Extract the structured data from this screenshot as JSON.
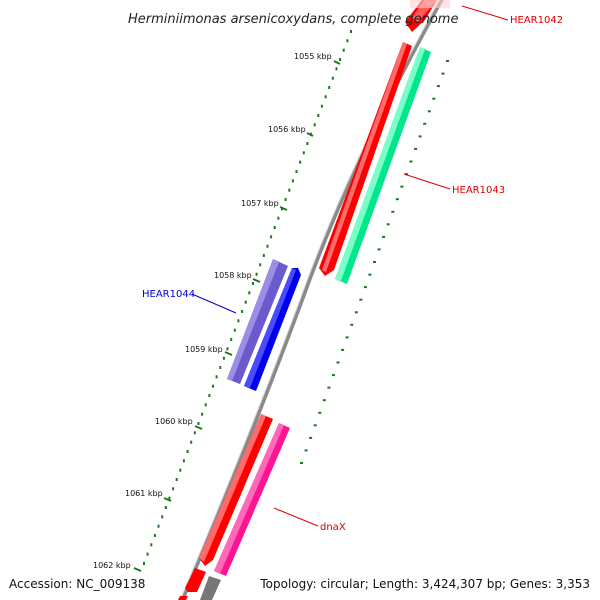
{
  "title": "Herminiimonas arsenicoxydans, complete genome",
  "footer": {
    "accession": "Accession: NC_009138",
    "summary": "Topology: circular; Length: 3,424,307 bp; Genes: 3,353"
  },
  "ticks": [
    "1055 kbp",
    "1056 kbp",
    "1057 kbp",
    "1058 kbp",
    "1059 kbp",
    "1060 kbp",
    "1061 kbp",
    "1062 kbp"
  ],
  "genes": [
    {
      "label": "HEAR1042",
      "color": "#dd0000"
    },
    {
      "label": "HEAR1043",
      "color": "#dd0000"
    },
    {
      "label": "HEAR1044",
      "color": "#0000cc"
    },
    {
      "label": "dnaX",
      "color": "#dd0000"
    }
  ],
  "colors": {
    "cds": "#ff0000",
    "cog_green": "#00e68a",
    "cog_purple": "#6a5acd",
    "cog_blue": "#0000ee",
    "cog_pink": "#ff1493",
    "backbone": "#8a8a8a",
    "tick": "#1a7a1a"
  }
}
